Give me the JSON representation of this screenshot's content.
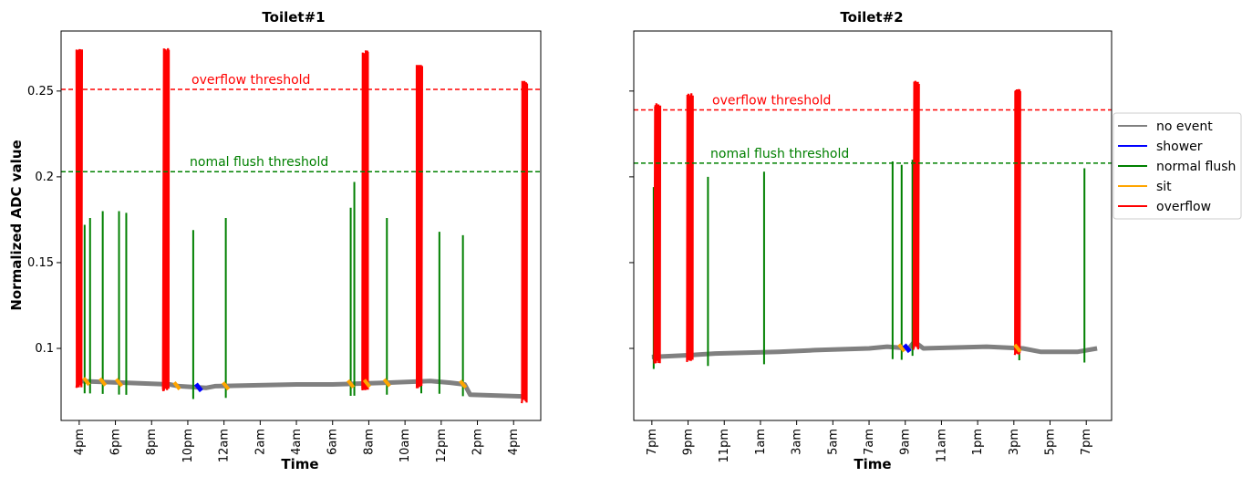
{
  "ylabel": "Normalized ADC value",
  "xlabel": "Time",
  "legend": {
    "placement": "right",
    "items": [
      {
        "label": "no event",
        "color": "#808080"
      },
      {
        "label": "shower",
        "color": "#0000ff"
      },
      {
        "label": "normal flush",
        "color": "#008000"
      },
      {
        "label": "sit",
        "color": "#ffa500"
      },
      {
        "label": "overflow",
        "color": "#ff0000"
      }
    ]
  },
  "chart_data": [
    {
      "type": "line",
      "title": "Toilet#1",
      "xlabel": "Time",
      "ylabel": "Normalized ADC value",
      "ylim": [
        0.058,
        0.285
      ],
      "yticks": [
        "0.1",
        "0.15",
        "0.2",
        "0.25"
      ],
      "ytick_values": [
        0.1,
        0.15,
        0.2,
        0.25
      ],
      "x_unit": "hours from 3pm (day 1)",
      "xlim": [
        0,
        26.5
      ],
      "xtick_positions": [
        1,
        3,
        5,
        7,
        9,
        11,
        13,
        15,
        17,
        19,
        21,
        23,
        25
      ],
      "xticks": [
        "4pm",
        "6pm",
        "8pm",
        "10pm",
        "12am",
        "2am",
        "4am",
        "6am",
        "8am",
        "10am",
        "12pm",
        "2pm",
        "4pm"
      ],
      "thresholds": [
        {
          "label": "overflow threshold",
          "value": 0.251,
          "color": "#ff0000"
        },
        {
          "label": "nomal flush threshold",
          "value": 0.203,
          "color": "#008000"
        }
      ],
      "baseline": [
        [
          0.9,
          0.081
        ],
        [
          6,
          0.079
        ],
        [
          6.5,
          0.078
        ],
        [
          8,
          0.077
        ],
        [
          8.5,
          0.078
        ],
        [
          13,
          0.079
        ],
        [
          15,
          0.079
        ],
        [
          18,
          0.08
        ],
        [
          20.4,
          0.081
        ],
        [
          21.5,
          0.08
        ],
        [
          22.3,
          0.079
        ],
        [
          22.6,
          0.073
        ],
        [
          25.7,
          0.072
        ]
      ],
      "series": [
        {
          "name": "normal flush",
          "color": "#008000",
          "spikes": [
            [
              1.3,
              0.172
            ],
            [
              1.6,
              0.176
            ],
            [
              2.3,
              0.18
            ],
            [
              3.2,
              0.18
            ],
            [
              3.6,
              0.179
            ],
            [
              7.3,
              0.169
            ],
            [
              9.1,
              0.176
            ],
            [
              16.0,
              0.182
            ],
            [
              16.2,
              0.197
            ],
            [
              18.0,
              0.176
            ],
            [
              19.9,
              0.176
            ],
            [
              20.9,
              0.168
            ],
            [
              22.2,
              0.166
            ]
          ]
        },
        {
          "name": "overflow",
          "color": "#ff0000",
          "bursts": [
            [
              1.0,
              0.275
            ],
            [
              5.8,
              0.275
            ],
            [
              16.8,
              0.274
            ],
            [
              19.8,
              0.266
            ],
            [
              25.6,
              0.256
            ]
          ]
        },
        {
          "name": "sit",
          "color": "#ffa500",
          "marks": [
            1.4,
            2.3,
            3.2,
            6.4,
            9.1,
            16.0,
            16.9,
            18.0,
            22.2
          ]
        },
        {
          "name": "shower",
          "color": "#0000ff",
          "marks": [
            7.6
          ]
        }
      ]
    },
    {
      "type": "line",
      "title": "Toilet#2",
      "xlabel": "Time",
      "ylabel": "",
      "ylim": [
        0.058,
        0.285
      ],
      "x_unit": "hours from 6pm (day 1)",
      "xlim": [
        0,
        26.4
      ],
      "xtick_positions": [
        1,
        3,
        5,
        7,
        9,
        11,
        13,
        15,
        17,
        19,
        21,
        23,
        25
      ],
      "xticks": [
        "7pm",
        "9pm",
        "11pm",
        "1am",
        "3am",
        "5am",
        "7am",
        "9am",
        "11am",
        "1pm",
        "3pm",
        "5pm",
        "7pm"
      ],
      "thresholds": [
        {
          "label": "overflow threshold",
          "value": 0.239,
          "color": "#ff0000"
        },
        {
          "label": "nomal flush threshold",
          "value": 0.208,
          "color": "#008000"
        }
      ],
      "baseline": [
        [
          1.0,
          0.095
        ],
        [
          3.0,
          0.096
        ],
        [
          4.5,
          0.097
        ],
        [
          8.0,
          0.098
        ],
        [
          10.0,
          0.099
        ],
        [
          13.0,
          0.1
        ],
        [
          14.0,
          0.101
        ],
        [
          15.2,
          0.1
        ],
        [
          15.5,
          0.104
        ],
        [
          16.0,
          0.1
        ],
        [
          19.5,
          0.101
        ],
        [
          21.5,
          0.1
        ],
        [
          22.5,
          0.098
        ],
        [
          24.5,
          0.098
        ],
        [
          25.6,
          0.1
        ]
      ],
      "series": [
        {
          "name": "normal flush",
          "color": "#008000",
          "spikes": [
            [
              1.1,
              0.194
            ],
            [
              4.1,
              0.2
            ],
            [
              7.2,
              0.203
            ],
            [
              14.3,
              0.209
            ],
            [
              14.8,
              0.207
            ],
            [
              15.4,
              0.21
            ],
            [
              21.3,
              0.203
            ],
            [
              24.9,
              0.205
            ]
          ]
        },
        {
          "name": "overflow",
          "color": "#ff0000",
          "bursts": [
            [
              1.3,
              0.243
            ],
            [
              3.1,
              0.249
            ],
            [
              15.6,
              0.256
            ],
            [
              21.2,
              0.252
            ]
          ]
        },
        {
          "name": "sit",
          "color": "#ffa500",
          "marks": [
            14.8,
            21.2
          ]
        },
        {
          "name": "shower",
          "color": "#0000ff",
          "marks": [
            15.1
          ]
        }
      ]
    }
  ]
}
